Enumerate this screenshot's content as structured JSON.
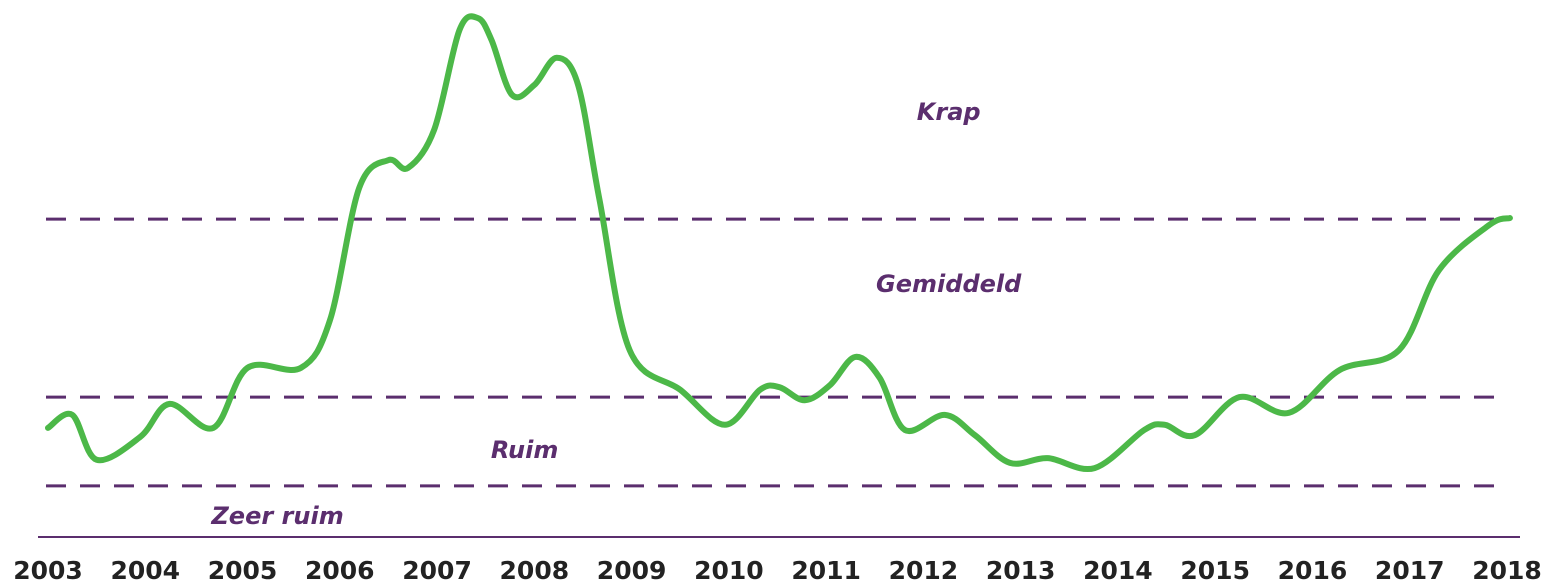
{
  "chart_data": {
    "type": "line",
    "x": [
      2003.0,
      2003.25,
      2003.5,
      2003.95,
      2004.25,
      2004.7,
      2005.05,
      2005.6,
      2005.9,
      2006.2,
      2006.5,
      2006.7,
      2006.97,
      2007.23,
      2007.42,
      2007.56,
      2007.77,
      2008.0,
      2008.23,
      2008.45,
      2008.67,
      2008.98,
      2009.5,
      2009.96,
      2010.32,
      2010.52,
      2010.78,
      2011.04,
      2011.3,
      2011.55,
      2011.81,
      2012.22,
      2012.53,
      2012.89,
      2013.28,
      2013.76,
      2014.27,
      2014.48,
      2014.79,
      2015.25,
      2015.76,
      2016.28,
      2016.89,
      2017.3,
      2017.82,
      2018.03
    ],
    "series": [
      {
        "color": "#4cb848",
        "values": [
          20.9,
          23.4,
          14.8,
          19.2,
          25.5,
          20.9,
          32.4,
          32.4,
          41.6,
          66.9,
          72.2,
          70.7,
          78.0,
          97.1,
          99.4,
          95.2,
          84.7,
          86.6,
          91.8,
          86.6,
          64.6,
          35.8,
          28.2,
          21.5,
          28.2,
          28.7,
          26.2,
          29.1,
          34.5,
          30.5,
          20.5,
          23.4,
          19.5,
          14.2,
          15.1,
          13.2,
          20.5,
          21.5,
          19.5,
          26.8,
          23.8,
          32.0,
          35.8,
          51.1,
          59.8,
          61.1
        ]
      }
    ],
    "xlim": [
      2003,
      2018
    ],
    "xticks": [
      2003,
      2004,
      2005,
      2006,
      2007,
      2008,
      2009,
      2010,
      2011,
      2012,
      2013,
      2014,
      2015,
      2016,
      2017,
      2018
    ],
    "ylim": [
      0,
      100
    ],
    "reference_lines": [
      9.8,
      26.8,
      60.9
    ],
    "reference_color": "#5b2e6e",
    "annotations": [
      {
        "text": "Krap",
        "x": 2012.26,
        "y": 81.2
      },
      {
        "text": "Gemiddeld",
        "x": 2012.26,
        "y": 48.3
      },
      {
        "text": "Ruim",
        "x": 2007.9,
        "y": 16.5
      },
      {
        "text": "Zeer ruim",
        "x": 2005.36,
        "y": 3.8
      }
    ]
  }
}
